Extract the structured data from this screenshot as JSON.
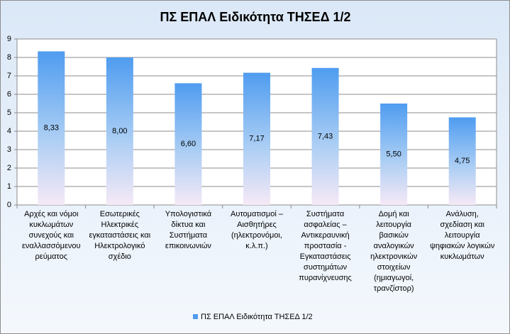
{
  "chart_data": {
    "type": "bar",
    "title": "ΠΣ ΕΠΑΛ Ειδικότητα ΤΗΣΕΔ 1/2",
    "categories": [
      "Αρχές και νόμοι κυκλωμάτων συνεχούς και εναλλασσόμενου ρεύματος",
      "Εσωτερικές Ηλεκτρικές εγκαταστάσεις και Ηλεκτρολογικό σχέδιο",
      "Υπολογιστικά δίκτυα και Συστήματα επικοινωνιών",
      "Αυτοματισμοί – Αισθητήρες (ηλεκτρονόμοι, κ.λ.π.)",
      "Συστήματα ασφαλείας – Αντικεραυνική προστασία - Εγκαταστάσεις συστημάτων πυρανίχνευσης",
      "Δομή και λειτουργία βασικών αναλογικών ηλεκτρονικών στοιχείων (ημιαγωγοί, τρανζίστορ)",
      "Ανάλυση, σχεδίαση και λειτουργία ψηφιακών λογικών κυκλωμάτων"
    ],
    "series": [
      {
        "name": "ΠΣ ΕΠΑΛ Ειδικότητα ΤΗΣΕΔ 1/2",
        "color": "#4f9cf0",
        "values": [
          8.33,
          8.0,
          6.6,
          7.17,
          7.43,
          5.5,
          4.75
        ],
        "value_labels": [
          "8,33",
          "8,00",
          "6,60",
          "7,17",
          "7,43",
          "5,50",
          "4,75"
        ]
      }
    ],
    "ylim": [
      0,
      9
    ],
    "yticks": [
      0,
      1,
      2,
      3,
      4,
      5,
      6,
      7,
      8,
      9
    ],
    "grid": true,
    "legend": "bottom"
  }
}
